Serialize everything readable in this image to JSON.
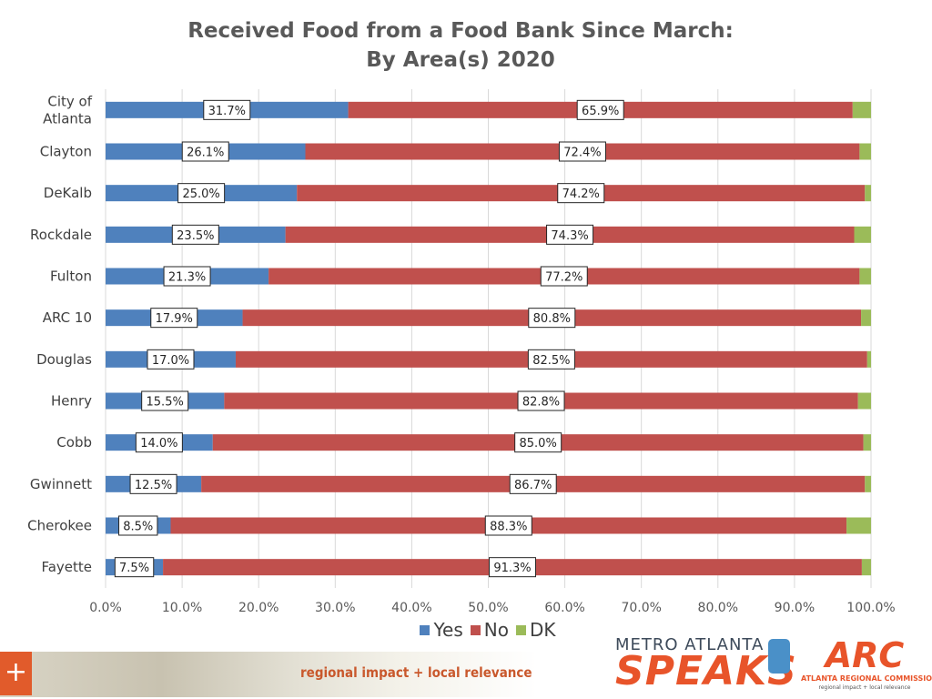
{
  "chart_data": {
    "type": "bar",
    "orientation": "horizontal",
    "stacked": true,
    "title_lines": [
      "Received Food from a Food Bank Since March:",
      "By Area(s) 2020"
    ],
    "categories": [
      "City of Atlanta",
      "Clayton",
      "DeKalb",
      "Rockdale",
      "Fulton",
      "ARC 10",
      "Douglas",
      "Henry",
      "Cobb",
      "Gwinnett",
      "Cherokee",
      "Fayette"
    ],
    "category_label_lines": [
      [
        "City of",
        "Atlanta"
      ],
      [
        "Clayton"
      ],
      [
        "DeKalb"
      ],
      [
        "Rockdale"
      ],
      [
        "Fulton"
      ],
      [
        "ARC 10"
      ],
      [
        "Douglas"
      ],
      [
        "Henry"
      ],
      [
        "Cobb"
      ],
      [
        "Gwinnett"
      ],
      [
        "Cherokee"
      ],
      [
        "Fayette"
      ]
    ],
    "series": [
      {
        "name": "Yes",
        "color": "#4f81bd",
        "values": [
          31.7,
          26.1,
          25.0,
          23.5,
          21.3,
          17.9,
          17.0,
          15.5,
          14.0,
          12.5,
          8.5,
          7.5
        ],
        "labels": [
          "31.7%",
          "26.1%",
          "25.0%",
          "23.5%",
          "21.3%",
          "17.9%",
          "17.0%",
          "15.5%",
          "14.0%",
          "12.5%",
          "8.5%",
          "7.5%"
        ]
      },
      {
        "name": "No",
        "color": "#c0504d",
        "values": [
          65.9,
          72.4,
          74.2,
          74.3,
          77.2,
          80.8,
          82.5,
          82.8,
          85.0,
          86.7,
          88.3,
          91.3
        ],
        "labels": [
          "65.9%",
          "72.4%",
          "74.2%",
          "74.3%",
          "77.2%",
          "80.8%",
          "82.5%",
          "82.8%",
          "85.0%",
          "86.7%",
          "88.3%",
          "91.3%"
        ]
      },
      {
        "name": "DK",
        "color": "#9bbb59",
        "values": [
          2.4,
          1.5,
          0.8,
          2.2,
          1.5,
          1.3,
          0.5,
          1.7,
          1.0,
          0.8,
          3.2,
          1.2
        ]
      }
    ],
    "xlim": [
      0,
      100
    ],
    "xticks": [
      "0.0%",
      "10.0%",
      "20.0%",
      "30.0%",
      "40.0%",
      "50.0%",
      "60.0%",
      "70.0%",
      "80.0%",
      "90.0%",
      "100.0%"
    ],
    "grid": "vertical",
    "legend_position": "bottom"
  },
  "footer": {
    "plus_icon": "+",
    "tagline": "regional impact + local relevance"
  },
  "logos": {
    "mas_top": "METRO ATLANTA",
    "mas_bottom": "SPEAKS",
    "arc_mark": "ARC",
    "arc_name": "ATLANTA REGIONAL COMMISSION",
    "arc_tagline": "regional impact + local relevance"
  }
}
